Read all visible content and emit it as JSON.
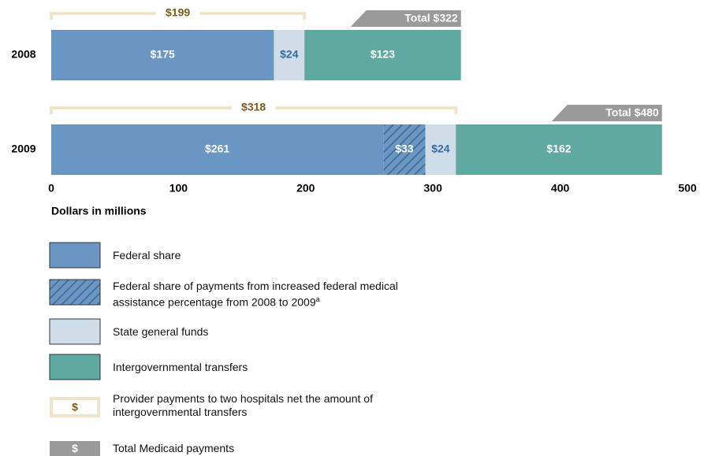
{
  "chart_data": {
    "type": "stacked_barh",
    "categories": [
      "2008",
      "2009"
    ],
    "series": [
      {
        "name": "Federal share",
        "color": "#6a96c4",
        "values": [
          175,
          261
        ],
        "value_labels": [
          "$175",
          "$261"
        ],
        "label_color": "#ffffff"
      },
      {
        "name": "Federal share of payments from increased federal medical assistance percentage from 2008 to 2009",
        "footnote": "a",
        "color": "#6a96c4",
        "hatch": true,
        "values": [
          null,
          33
        ],
        "value_labels": [
          null,
          "$33"
        ],
        "label_color": "#ffffff"
      },
      {
        "name": "State general funds",
        "color": "#cfdde9",
        "values": [
          24,
          24
        ],
        "value_labels": [
          "$24",
          "$24"
        ],
        "label_color": "#3b6aa0"
      },
      {
        "name": "Intergovernmental transfers",
        "color": "#5fa9a0",
        "values": [
          123,
          162
        ],
        "value_labels": [
          "$123",
          "$162"
        ],
        "label_color": "#ffffff"
      }
    ],
    "net_payments": {
      "name": "Provider payments to two hospitals net the amount of intergovernmental transfers",
      "symbol": "$",
      "color": "#efe5cc",
      "text_color": "#7a5c1e",
      "values": [
        199,
        318
      ],
      "value_labels": [
        "$199",
        "$318"
      ]
    },
    "totals": {
      "name": "Total Medicaid payments",
      "symbol": "$",
      "color": "#9a9a9a",
      "values": [
        322,
        480
      ],
      "value_labels": [
        "Total $322",
        "Total $480"
      ]
    },
    "xlabel": "Dollars in millions",
    "xlim": [
      0,
      500
    ],
    "xticks": [
      0,
      100,
      200,
      300,
      400,
      500
    ],
    "grid": false
  }
}
